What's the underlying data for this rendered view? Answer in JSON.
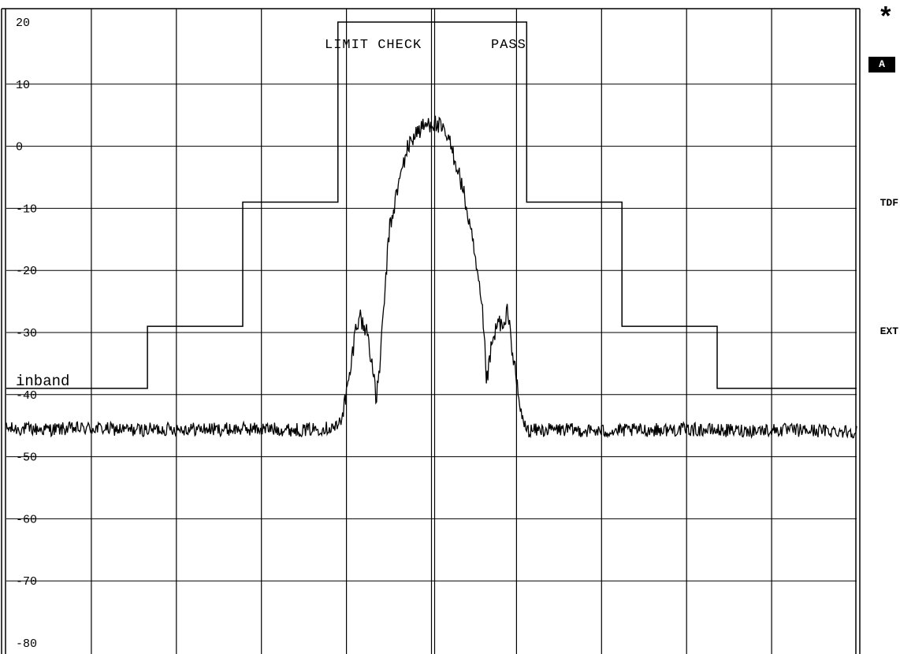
{
  "status": {
    "label": "LIMIT CHECK",
    "result": "PASS"
  },
  "limit_line": {
    "label": "inband"
  },
  "side_annotations": {
    "marker": "*",
    "trace": "A",
    "transducer": "TDF",
    "trigger": "EXT"
  },
  "chart_data": {
    "type": "line",
    "title": "",
    "xlabel": "",
    "ylabel": "",
    "ylim": [
      -80,
      20
    ],
    "xlim": [
      0,
      1
    ],
    "y_ticks": [
      "20",
      "10",
      "0",
      "-10",
      "-20",
      "-30",
      "-40",
      "-50",
      "-60",
      "-70",
      "-80"
    ],
    "grid": true,
    "vertical_gridlines": 10,
    "series": [
      {
        "role": "limit",
        "points": [
          [
            0.0,
            -39
          ],
          [
            0.166,
            -39
          ],
          [
            0.166,
            -29
          ],
          [
            0.278,
            -29
          ],
          [
            0.278,
            -9
          ],
          [
            0.39,
            -9
          ],
          [
            0.39,
            20
          ],
          [
            0.612,
            20
          ],
          [
            0.612,
            -9
          ],
          [
            0.724,
            -9
          ],
          [
            0.724,
            -29
          ],
          [
            0.836,
            -29
          ],
          [
            0.836,
            -39
          ],
          [
            1.0,
            -39
          ]
        ]
      },
      {
        "role": "trace",
        "points": [
          [
            0.0,
            -45.5
          ],
          [
            0.05,
            -45.6
          ],
          [
            0.1,
            -45.4
          ],
          [
            0.15,
            -45.7
          ],
          [
            0.2,
            -45.5
          ],
          [
            0.25,
            -45.6
          ],
          [
            0.3,
            -45.5
          ],
          [
            0.35,
            -45.7
          ],
          [
            0.39,
            -45.2
          ],
          [
            0.395,
            -43
          ],
          [
            0.4,
            -40
          ],
          [
            0.405,
            -36
          ],
          [
            0.41,
            -30
          ],
          [
            0.415,
            -27
          ],
          [
            0.42,
            -29
          ],
          [
            0.425,
            -30
          ],
          [
            0.43,
            -35
          ],
          [
            0.435,
            -41
          ],
          [
            0.44,
            -34
          ],
          [
            0.445,
            -24
          ],
          [
            0.45,
            -14
          ],
          [
            0.46,
            -7
          ],
          [
            0.47,
            -1
          ],
          [
            0.48,
            2
          ],
          [
            0.49,
            3
          ],
          [
            0.5,
            4
          ],
          [
            0.51,
            3
          ],
          [
            0.52,
            1
          ],
          [
            0.53,
            -3
          ],
          [
            0.54,
            -9
          ],
          [
            0.55,
            -17
          ],
          [
            0.56,
            -27
          ],
          [
            0.565,
            -38
          ],
          [
            0.57,
            -33
          ],
          [
            0.575,
            -30
          ],
          [
            0.58,
            -28
          ],
          [
            0.585,
            -30
          ],
          [
            0.59,
            -26
          ],
          [
            0.595,
            -33
          ],
          [
            0.6,
            -38
          ],
          [
            0.605,
            -43
          ],
          [
            0.612,
            -45.8
          ],
          [
            0.65,
            -45.6
          ],
          [
            0.7,
            -45.9
          ],
          [
            0.75,
            -45.7
          ],
          [
            0.8,
            -45.6
          ],
          [
            0.85,
            -45.8
          ],
          [
            0.9,
            -45.7
          ],
          [
            0.95,
            -45.8
          ],
          [
            1.0,
            -45.9
          ]
        ]
      }
    ]
  }
}
